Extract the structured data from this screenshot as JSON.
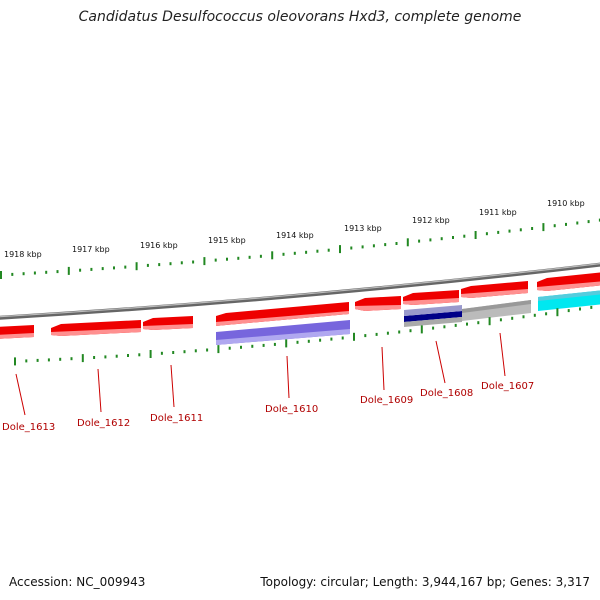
{
  "title": "Candidatus Desulfococcus oleovorans Hxd3, complete genome",
  "footer": {
    "accession": "Accession: NC_009943",
    "summary": "Topology: circular; Length: 3,944,167 bp; Genes: 3,317"
  },
  "scale_labels": [
    "1918 kbp",
    "1917 kbp",
    "1916 kbp",
    "1915 kbp",
    "1914 kbp",
    "1913 kbp",
    "1912 kbp",
    "1911 kbp",
    "1910 kbp"
  ],
  "gene_labels": [
    "Dole_1613",
    "Dole_1612",
    "Dole_1611",
    "Dole_1610",
    "Dole_1609",
    "Dole_1608",
    "Dole_1607"
  ],
  "colors": {
    "forward_gene": "#ee0000",
    "reverse_gene": "#ee0000",
    "rna_gene": "#7766dd",
    "grey_gene": "#bbbbbb",
    "cyan_gene": "#00e8f0",
    "backbone": "#888888",
    "ticks": "#228822",
    "label": "#b00000"
  }
}
